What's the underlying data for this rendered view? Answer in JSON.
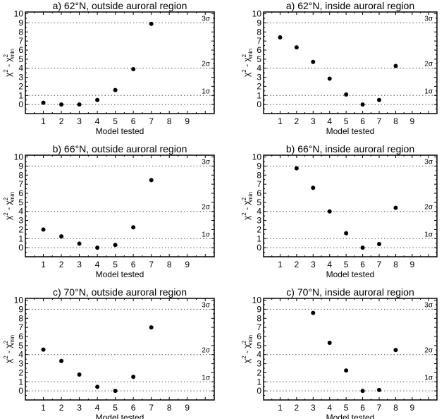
{
  "chart_data": [
    {
      "type": "scatter",
      "title": "a) 62°N, outside auroral region",
      "xlabel": "Model tested",
      "ylabel": "χ² - χ²min",
      "x": [
        1,
        2,
        3,
        4,
        5,
        6,
        7
      ],
      "y": [
        0.2,
        0,
        0,
        0.5,
        1.6,
        3.9,
        8.9
      ],
      "xticks": [
        1,
        2,
        3,
        4,
        5,
        6,
        7,
        8,
        9
      ],
      "yticks": [
        0,
        1,
        2,
        3,
        4,
        5,
        6,
        7,
        8,
        9,
        10
      ],
      "xlim": [
        0,
        10.5
      ],
      "ylim": [
        -1,
        10.2
      ],
      "reference_lines": [
        {
          "y": 0,
          "label": ""
        },
        {
          "y": 1,
          "label": "1σ"
        },
        {
          "y": 4,
          "label": "2σ"
        },
        {
          "y": 9,
          "label": "3σ"
        }
      ]
    },
    {
      "type": "scatter",
      "title": "a) 62°N, inside auroral region",
      "xlabel": "Model tested",
      "ylabel": "χ² - χ²min",
      "x": [
        1,
        2,
        3,
        4,
        5,
        6,
        7,
        8
      ],
      "y": [
        7.4,
        6.3,
        4.7,
        2.85,
        1.1,
        0,
        0.5,
        4.25
      ],
      "xticks": [
        1,
        2,
        3,
        4,
        5,
        6,
        7,
        8,
        9
      ],
      "yticks": [
        0,
        1,
        2,
        3,
        4,
        5,
        6,
        7,
        8,
        9,
        10
      ],
      "xlim": [
        0,
        10.5
      ],
      "ylim": [
        -1,
        10.2
      ],
      "reference_lines": [
        {
          "y": 0,
          "label": ""
        },
        {
          "y": 1,
          "label": "1σ"
        },
        {
          "y": 4,
          "label": "2σ"
        },
        {
          "y": 9,
          "label": "3σ"
        }
      ]
    },
    {
      "type": "scatter",
      "title": "b) 66°N, outside auroral region",
      "xlabel": "Model tested",
      "ylabel": "χ² - χ²min",
      "x": [
        1,
        2,
        3,
        4,
        5,
        6,
        7
      ],
      "y": [
        2.0,
        1.25,
        0.45,
        0,
        0.3,
        2.25,
        7.45
      ],
      "xticks": [
        1,
        2,
        3,
        4,
        5,
        6,
        7,
        8,
        9
      ],
      "yticks": [
        0,
        1,
        2,
        3,
        4,
        5,
        6,
        7,
        8,
        9,
        10
      ],
      "xlim": [
        0,
        10.5
      ],
      "ylim": [
        -1,
        10.2
      ],
      "reference_lines": [
        {
          "y": 0,
          "label": ""
        },
        {
          "y": 1,
          "label": "1σ"
        },
        {
          "y": 4,
          "label": "2σ"
        },
        {
          "y": 9,
          "label": "3σ"
        }
      ]
    },
    {
      "type": "scatter",
      "title": "b) 66°N, inside auroral region",
      "xlabel": "Model tested",
      "ylabel": "χ² - χ²min",
      "x": [
        2,
        3,
        4,
        5,
        6,
        7,
        8
      ],
      "y": [
        8.75,
        6.6,
        4.0,
        1.6,
        0,
        0.4,
        4.4
      ],
      "xticks": [
        1,
        2,
        3,
        4,
        5,
        6,
        7,
        8,
        9
      ],
      "yticks": [
        0,
        1,
        2,
        3,
        4,
        5,
        6,
        7,
        8,
        9,
        10
      ],
      "xlim": [
        0,
        10.5
      ],
      "ylim": [
        -1,
        10.2
      ],
      "reference_lines": [
        {
          "y": 0,
          "label": ""
        },
        {
          "y": 1,
          "label": "1σ"
        },
        {
          "y": 4,
          "label": "2σ"
        },
        {
          "y": 9,
          "label": "3σ"
        }
      ]
    },
    {
      "type": "scatter",
      "title": "c) 70°N, outside auroral region",
      "xlabel": "Model tested",
      "ylabel": "χ² - χ²min",
      "x": [
        1,
        2,
        3,
        4,
        5,
        6,
        7
      ],
      "y": [
        4.55,
        3.3,
        1.8,
        0.45,
        0,
        1.55,
        7.0
      ],
      "xticks": [
        1,
        2,
        3,
        4,
        5,
        6,
        7,
        8,
        9
      ],
      "yticks": [
        0,
        1,
        2,
        3,
        4,
        5,
        6,
        7,
        8,
        9,
        10
      ],
      "xlim": [
        0,
        10.5
      ],
      "ylim": [
        -1,
        10.2
      ],
      "reference_lines": [
        {
          "y": 0,
          "label": ""
        },
        {
          "y": 1,
          "label": "1σ"
        },
        {
          "y": 4,
          "label": "2σ"
        },
        {
          "y": 9,
          "label": "3σ"
        }
      ]
    },
    {
      "type": "scatter",
      "title": "c) 70°N, inside auroral region",
      "xlabel": "Model tested",
      "ylabel": "χ² - χ²min",
      "x": [
        3,
        4,
        5,
        6,
        7,
        8
      ],
      "y": [
        8.6,
        5.3,
        2.25,
        0,
        0.1,
        4.5
      ],
      "xticks": [
        1,
        2,
        3,
        4,
        5,
        6,
        7,
        8,
        9
      ],
      "yticks": [
        0,
        1,
        2,
        3,
        4,
        5,
        6,
        7,
        8,
        9,
        10
      ],
      "xlim": [
        0,
        10.5
      ],
      "ylim": [
        -1,
        10.2
      ],
      "reference_lines": [
        {
          "y": 0,
          "label": ""
        },
        {
          "y": 1,
          "label": "1σ"
        },
        {
          "y": 4,
          "label": "2σ"
        },
        {
          "y": 9,
          "label": "3σ"
        }
      ]
    }
  ]
}
